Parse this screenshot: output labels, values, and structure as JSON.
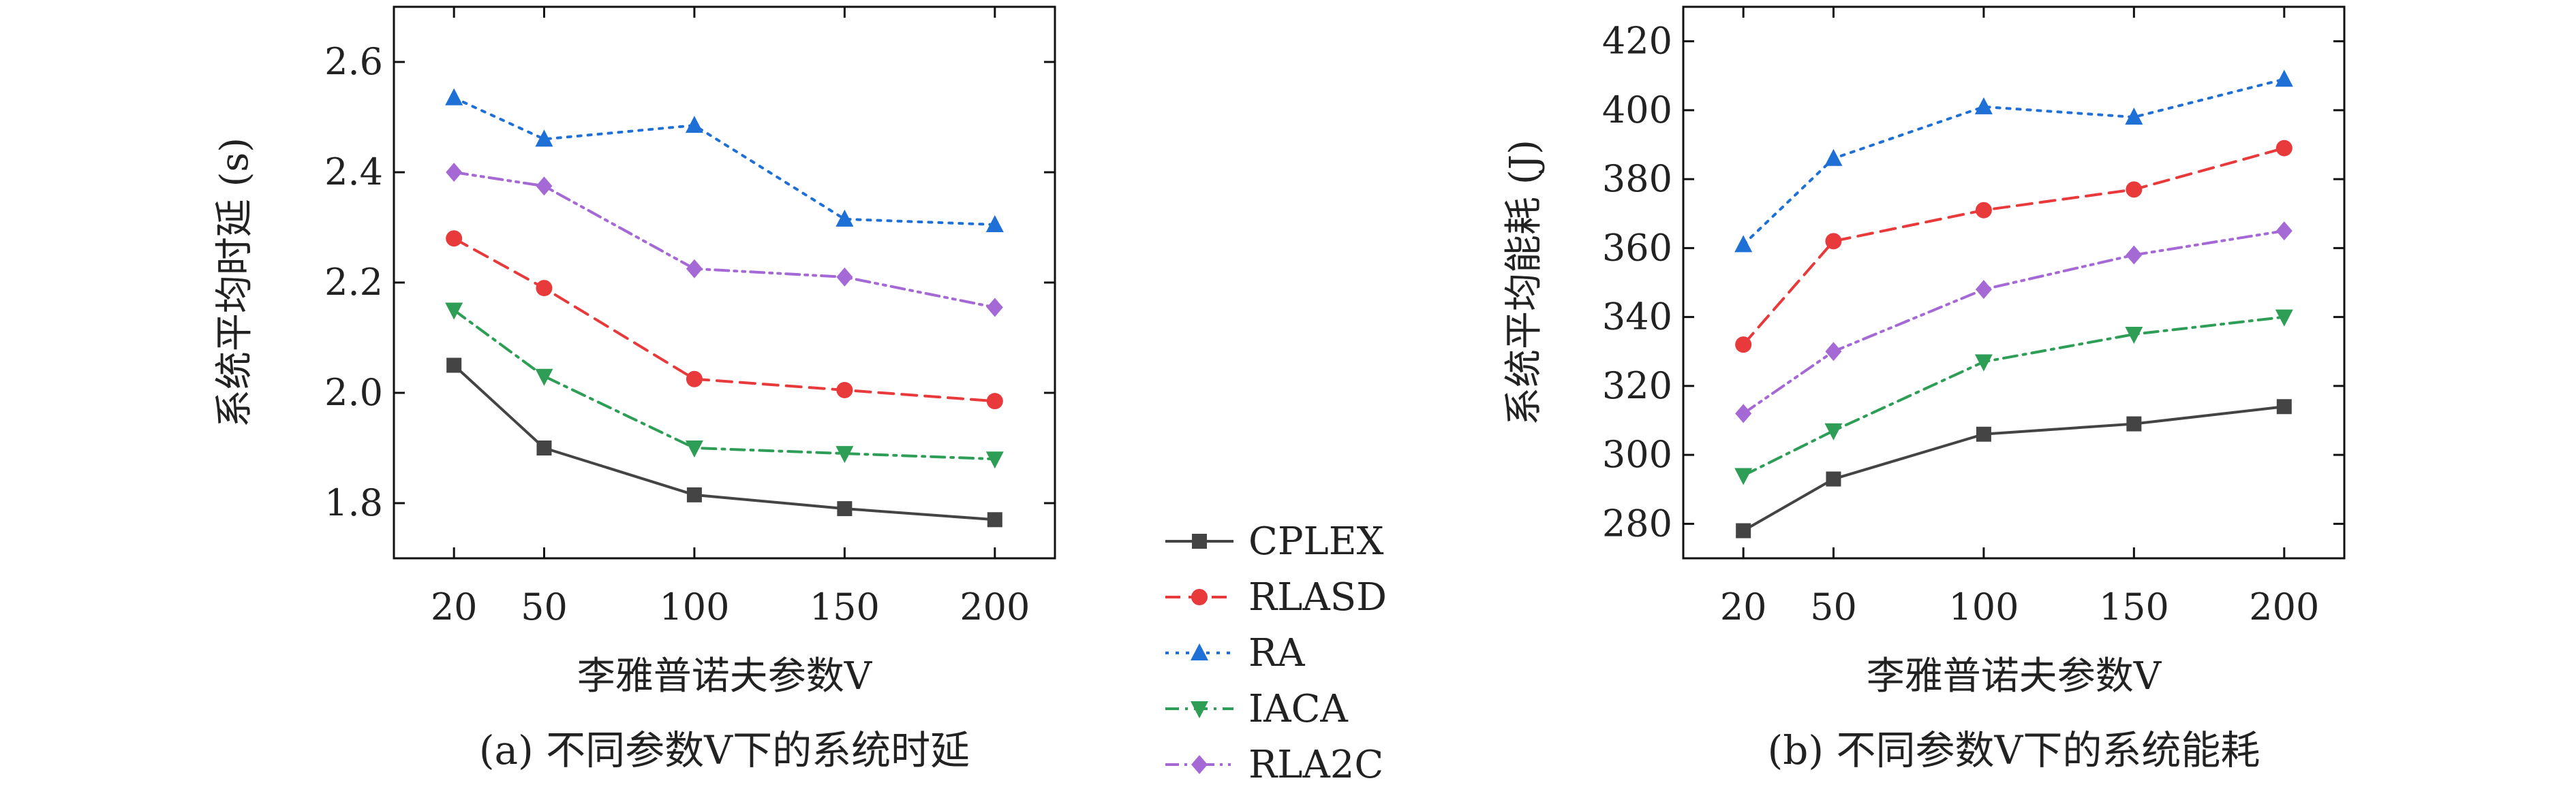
{
  "legend": {
    "entries": [
      {
        "name": "CPLEX",
        "color": "#444444",
        "marker": "square",
        "dash": "solid"
      },
      {
        "name": "RLASD",
        "color": "#e8393b",
        "marker": "circle",
        "dash": "dashed"
      },
      {
        "name": "RA",
        "color": "#1e6fd6",
        "marker": "triangle-up",
        "dash": "dotted"
      },
      {
        "name": "IACA",
        "color": "#2e9e57",
        "marker": "triangle-down",
        "dash": "dashdot"
      },
      {
        "name": "RLA2C",
        "color": "#a569d6",
        "marker": "diamond",
        "dash": "dashdotdot"
      }
    ]
  },
  "chart_data": [
    {
      "type": "line",
      "caption": "(a) 不同参数V下的系统时延",
      "xlabel": "李雅普诺夫参数V",
      "ylabel": "系统平均时延 (s)",
      "x": [
        20,
        50,
        100,
        150,
        200
      ],
      "xticks": [
        "20",
        "50",
        "100",
        "150",
        "200"
      ],
      "xlim": [
        0,
        220
      ],
      "ylim": [
        1.7,
        2.7
      ],
      "yticks": [
        1.8,
        2.0,
        2.2,
        2.4,
        2.6
      ],
      "ytick_labels": [
        "1.8",
        "2.0",
        "2.2",
        "2.4",
        "2.6"
      ],
      "series": [
        {
          "name": "CPLEX",
          "values": [
            2.05,
            1.9,
            1.815,
            1.79,
            1.77
          ]
        },
        {
          "name": "RLASD",
          "values": [
            2.28,
            2.19,
            2.025,
            2.005,
            1.985
          ]
        },
        {
          "name": "RA",
          "values": [
            2.535,
            2.46,
            2.485,
            2.315,
            2.305
          ]
        },
        {
          "name": "IACA",
          "values": [
            2.15,
            2.03,
            1.9,
            1.89,
            1.88
          ]
        },
        {
          "name": "RLA2C",
          "values": [
            2.4,
            2.375,
            2.225,
            2.21,
            2.155
          ]
        }
      ]
    },
    {
      "type": "line",
      "caption": "(b) 不同参数V下的系统能耗",
      "xlabel": "李雅普诺夫参数V",
      "ylabel": "系统平均能耗 (J)",
      "x": [
        20,
        50,
        100,
        150,
        200
      ],
      "xticks": [
        "20",
        "50",
        "100",
        "150",
        "200"
      ],
      "xlim": [
        0,
        220
      ],
      "ylim": [
        270,
        430
      ],
      "yticks": [
        280,
        300,
        320,
        340,
        360,
        380,
        400,
        420
      ],
      "ytick_labels": [
        "280",
        "300",
        "320",
        "340",
        "360",
        "380",
        "400",
        "420"
      ],
      "series": [
        {
          "name": "CPLEX",
          "values": [
            278,
            293,
            306,
            309,
            314
          ]
        },
        {
          "name": "RLASD",
          "values": [
            332,
            362,
            371,
            377,
            389
          ]
        },
        {
          "name": "RA",
          "values": [
            361,
            386,
            401,
            398,
            409
          ]
        },
        {
          "name": "IACA",
          "values": [
            294,
            307,
            327,
            335,
            340
          ]
        },
        {
          "name": "RLA2C",
          "values": [
            312,
            330,
            348,
            358,
            365
          ]
        }
      ]
    }
  ]
}
